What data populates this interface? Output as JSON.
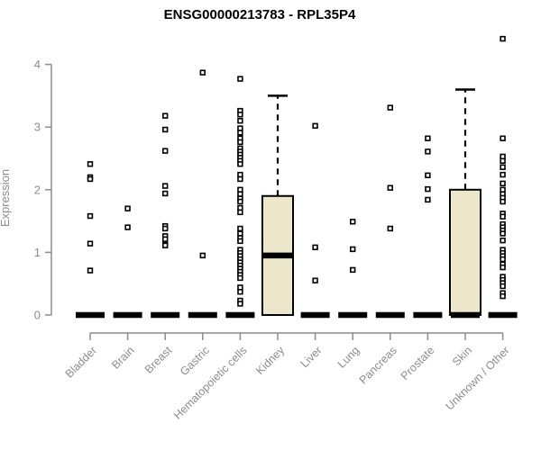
{
  "chart_data": {
    "type": "boxplot",
    "title": "ENSG00000213783 - RPL35P4",
    "ylabel": "Expression",
    "ylim": [
      0,
      4
    ],
    "yticks": [
      0,
      1,
      2,
      3,
      4
    ],
    "grid": false,
    "legend": "none",
    "point_marker": "open-square",
    "colors": {
      "box_fill": "#ede7cc",
      "box_border": "#000000",
      "median": "#000000",
      "whisker": "#000000",
      "point": "#000000",
      "axis": "#8c8c8c",
      "label": "#8c8c8c",
      "title": "#000000",
      "background": "#ffffff"
    },
    "categories": [
      "Bladder",
      "Brain",
      "Breast",
      "Gastric",
      "Hematopoietic cells",
      "Kidney",
      "Liver",
      "Lung",
      "Pancreas",
      "Prostate",
      "Skin",
      "Unknown / Other"
    ],
    "series": [
      {
        "category": "Bladder",
        "box": {
          "q1": 0,
          "median": 0,
          "q3": 0,
          "whisker_high": 0
        },
        "points": [
          2.41,
          2.2,
          2.17,
          1.58,
          1.14,
          0.71
        ]
      },
      {
        "category": "Brain",
        "box": {
          "q1": 0,
          "median": 0,
          "q3": 0,
          "whisker_high": 0
        },
        "points": [
          1.7,
          1.4
        ]
      },
      {
        "category": "Breast",
        "box": {
          "q1": 0,
          "median": 0,
          "q3": 0,
          "whisker_high": 0
        },
        "points": [
          3.18,
          2.96,
          2.62,
          2.06,
          1.94,
          1.42,
          1.38,
          1.26,
          1.21,
          1.13,
          1.11
        ]
      },
      {
        "category": "Gastric",
        "box": {
          "q1": 0,
          "median": 0,
          "q3": 0,
          "whisker_high": 0
        },
        "points": [
          3.87,
          0.95
        ]
      },
      {
        "category": "Hematopoietic cells",
        "box": {
          "q1": 0,
          "median": 0,
          "q3": 0,
          "whisker_high": 0
        },
        "points": [
          3.77,
          3.26,
          3.2,
          3.1,
          2.98,
          2.91,
          2.82,
          2.76,
          2.66,
          2.61,
          2.56,
          2.51,
          2.46,
          2.41,
          2.24,
          2.17,
          2.0,
          1.93,
          1.86,
          1.81,
          1.71,
          1.64,
          1.38,
          1.3,
          1.23,
          1.18,
          1.04,
          0.99,
          0.94,
          0.89,
          0.84,
          0.79,
          0.74,
          0.69,
          0.64,
          0.59,
          0.44,
          0.37,
          0.23,
          0.18
        ]
      },
      {
        "category": "Kidney",
        "box": {
          "q1": 0,
          "median": 0.95,
          "q3": 1.9,
          "whisker_high": 3.5
        },
        "points": []
      },
      {
        "category": "Liver",
        "box": {
          "q1": 0,
          "median": 0,
          "q3": 0,
          "whisker_high": 0
        },
        "points": [
          3.02,
          1.08,
          0.55
        ]
      },
      {
        "category": "Lung",
        "box": {
          "q1": 0,
          "median": 0,
          "q3": 0,
          "whisker_high": 0
        },
        "points": [
          1.49,
          1.05,
          0.72
        ]
      },
      {
        "category": "Pancreas",
        "box": {
          "q1": 0,
          "median": 0,
          "q3": 0,
          "whisker_high": 0
        },
        "points": [
          3.31,
          2.03,
          1.38
        ]
      },
      {
        "category": "Prostate",
        "box": {
          "q1": 0,
          "median": 0,
          "q3": 0,
          "whisker_high": 0
        },
        "points": [
          2.82,
          2.61,
          2.23,
          2.01,
          1.84
        ]
      },
      {
        "category": "Skin",
        "box": {
          "q1": 0,
          "median": 0,
          "q3": 2.0,
          "whisker_high": 3.6
        },
        "points": []
      },
      {
        "category": "Unknown / Other",
        "box": {
          "q1": 0,
          "median": 0,
          "q3": 0,
          "whisker_high": 0
        },
        "points": [
          4.41,
          2.82,
          2.53,
          2.46,
          2.36,
          2.24,
          2.1,
          2.0,
          1.93,
          1.87,
          1.81,
          1.62,
          1.57,
          1.45,
          1.4,
          1.35,
          1.3,
          1.19,
          1.04,
          0.99,
          0.94,
          0.89,
          0.81,
          0.76,
          0.61,
          0.56,
          0.51,
          0.46,
          0.35,
          0.3
        ]
      }
    ]
  }
}
